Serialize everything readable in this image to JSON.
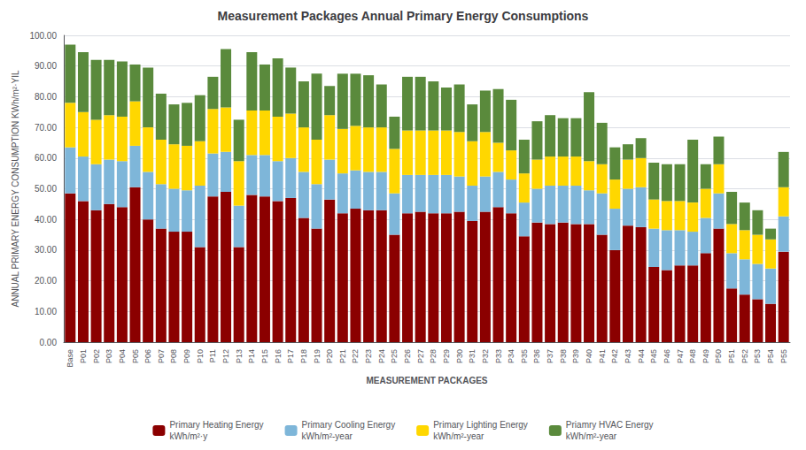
{
  "chart_data": {
    "type": "bar",
    "title": "Measurement Packages Annual Primary Energy Consumptions",
    "xlabel": "MEASUREMENT PACKAGES",
    "ylabel": "ANNUAL PRIMARY ENERGY CONSUMPTION KWh/m²·YIL",
    "stacked": true,
    "grid": true,
    "legend": "bottom",
    "ylim": [
      0,
      100
    ],
    "yticks": [
      {
        "value": 0,
        "label": "0.00"
      },
      {
        "value": 10,
        "label": "10.00"
      },
      {
        "value": 20,
        "label": "20.00"
      },
      {
        "value": 30,
        "label": "30.00"
      },
      {
        "value": 40,
        "label": "40.00"
      },
      {
        "value": 50,
        "label": "50.00"
      },
      {
        "value": 60,
        "label": "60.00"
      },
      {
        "value": 70,
        "label": "70.00"
      },
      {
        "value": 80,
        "label": "80.00"
      },
      {
        "value": 90,
        "label": "90.00"
      },
      {
        "value": 100,
        "label": "100.00"
      }
    ],
    "categories": [
      "Base",
      "P01",
      "P02",
      "P03",
      "P04",
      "P05",
      "P06",
      "P07",
      "P08",
      "P09",
      "P10",
      "P11",
      "P12",
      "P13",
      "P14",
      "P15",
      "P16",
      "P17",
      "P18",
      "P19",
      "P20",
      "P21",
      "P22",
      "P23",
      "P24",
      "P25",
      "P26",
      "P27",
      "P28",
      "P29",
      "P30",
      "P31",
      "P32",
      "P33",
      "P34",
      "P35",
      "P36",
      "P37",
      "P38",
      "P39",
      "P40",
      "P41",
      "P42",
      "P43",
      "P44",
      "P45",
      "P46",
      "P47",
      "P48",
      "P49",
      "P50",
      "P51",
      "P52",
      "P53",
      "P54",
      "P55"
    ],
    "series": [
      {
        "name": "Primary Heating Energy\nkWh/m²·y",
        "color": "#8B0000",
        "values": [
          48.5,
          46.0,
          43.0,
          45.0,
          44.0,
          50.5,
          40.0,
          37.0,
          36.0,
          36.0,
          31.0,
          47.5,
          49.0,
          31.0,
          48.0,
          47.5,
          46.0,
          47.0,
          40.5,
          37.0,
          46.5,
          42.0,
          43.5,
          43.0,
          43.0,
          35.0,
          42.0,
          42.5,
          42.0,
          42.0,
          42.5,
          39.5,
          42.5,
          44.0,
          42.0,
          34.5,
          39.0,
          38.5,
          39.0,
          38.5,
          38.5,
          35.0,
          30.0,
          38.0,
          37.5,
          24.5,
          23.5,
          25.0,
          25.0,
          29.0,
          37.0,
          17.5,
          15.5,
          14.0,
          12.5,
          29.5
        ]
      },
      {
        "name": "Primary Cooling Energy\nkWh/m²-year",
        "color": "#7EB6D9",
        "values": [
          15.0,
          14.5,
          15.0,
          14.5,
          15.0,
          13.5,
          15.5,
          14.5,
          14.0,
          13.5,
          20.0,
          14.0,
          13.0,
          13.5,
          13.0,
          13.5,
          13.0,
          13.0,
          15.0,
          14.5,
          13.0,
          13.0,
          12.5,
          12.5,
          12.5,
          13.5,
          12.5,
          12.0,
          12.5,
          12.5,
          11.5,
          11.5,
          11.5,
          11.5,
          11.0,
          11.0,
          11.0,
          12.5,
          12.0,
          12.5,
          11.0,
          13.5,
          13.5,
          12.0,
          13.0,
          12.5,
          13.0,
          11.5,
          11.0,
          11.5,
          11.5,
          11.5,
          11.5,
          11.5,
          11.5,
          11.5
        ]
      },
      {
        "name": "Primary Lighting Energy\nkWh/m²-year",
        "color": "#FFD700",
        "values": [
          14.5,
          14.5,
          14.5,
          14.5,
          14.5,
          14.5,
          14.5,
          14.5,
          14.5,
          14.5,
          14.5,
          14.5,
          14.5,
          14.5,
          14.5,
          14.5,
          14.5,
          14.5,
          14.5,
          14.5,
          14.5,
          14.5,
          14.5,
          14.5,
          14.5,
          14.5,
          14.5,
          14.5,
          14.5,
          14.5,
          14.5,
          14.5,
          14.5,
          9.5,
          9.5,
          9.5,
          9.5,
          9.5,
          9.5,
          9.5,
          9.5,
          9.5,
          9.5,
          9.5,
          9.5,
          9.5,
          9.5,
          9.5,
          9.5,
          9.5,
          9.5,
          9.5,
          9.5,
          9.5,
          9.5,
          9.5
        ]
      },
      {
        "name": "Priamry HVAC Energy\nkWh/m²-year",
        "color": "#5A8A3C",
        "values": [
          19.0,
          19.5,
          19.5,
          18.0,
          18.0,
          12.0,
          19.5,
          15.0,
          13.0,
          14.0,
          15.0,
          10.5,
          19.0,
          13.5,
          19.0,
          15.0,
          19.0,
          15.0,
          15.0,
          21.5,
          9.5,
          18.0,
          17.0,
          17.0,
          14.0,
          10.5,
          17.5,
          17.5,
          16.0,
          14.0,
          15.5,
          12.0,
          13.5,
          17.5,
          16.5,
          11.0,
          12.5,
          13.5,
          12.5,
          12.5,
          22.5,
          13.5,
          10.5,
          5.0,
          6.5,
          12.0,
          12.0,
          12.0,
          20.5,
          8.0,
          9.0,
          10.5,
          9.0,
          8.0,
          3.5,
          11.5
        ]
      }
    ]
  }
}
